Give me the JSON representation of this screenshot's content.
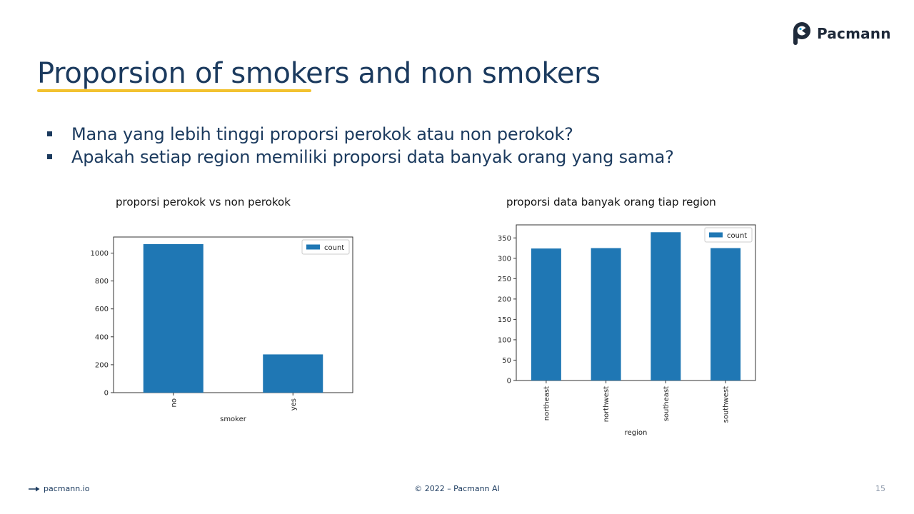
{
  "brand": {
    "name": "Pacmann",
    "icon": "pacmann-logo-icon"
  },
  "slide": {
    "title": "Proporsion of smokers and non smokers",
    "bullets": [
      "Mana yang lebih tinggi proporsi perokok atau non perokok?",
      "Apakah setiap region memiliki proporsi data banyak orang yang sama?"
    ]
  },
  "captions": {
    "left": "proporsi perokok vs non perokok",
    "right": "proporsi data banyak orang tiap region"
  },
  "footer": {
    "link": "pacmann.io",
    "link_icon": "arrow-right-icon",
    "copyright": "© 2022 – Pacmann AI",
    "page": "15"
  },
  "colors": {
    "bar": "#1f77b4",
    "title": "#1b3a5e",
    "underline": "#f2c230"
  },
  "chart_data": [
    {
      "type": "bar",
      "categories": [
        "no",
        "yes"
      ],
      "series": [
        {
          "name": "count",
          "values": [
            1064,
            274
          ]
        }
      ],
      "xlabel": "smoker",
      "ylabel": "",
      "ylim": [
        0,
        1115
      ],
      "yticks": [
        0,
        200,
        400,
        600,
        800,
        1000
      ],
      "legend": "top-right",
      "grid": false
    },
    {
      "type": "bar",
      "categories": [
        "northeast",
        "northwest",
        "southeast",
        "southwest"
      ],
      "series": [
        {
          "name": "count",
          "values": [
            324,
            325,
            364,
            325
          ]
        }
      ],
      "xlabel": "region",
      "ylabel": "",
      "ylim": [
        0,
        382
      ],
      "yticks": [
        0,
        50,
        100,
        150,
        200,
        250,
        300,
        350
      ],
      "legend": "top-right",
      "grid": false
    }
  ]
}
